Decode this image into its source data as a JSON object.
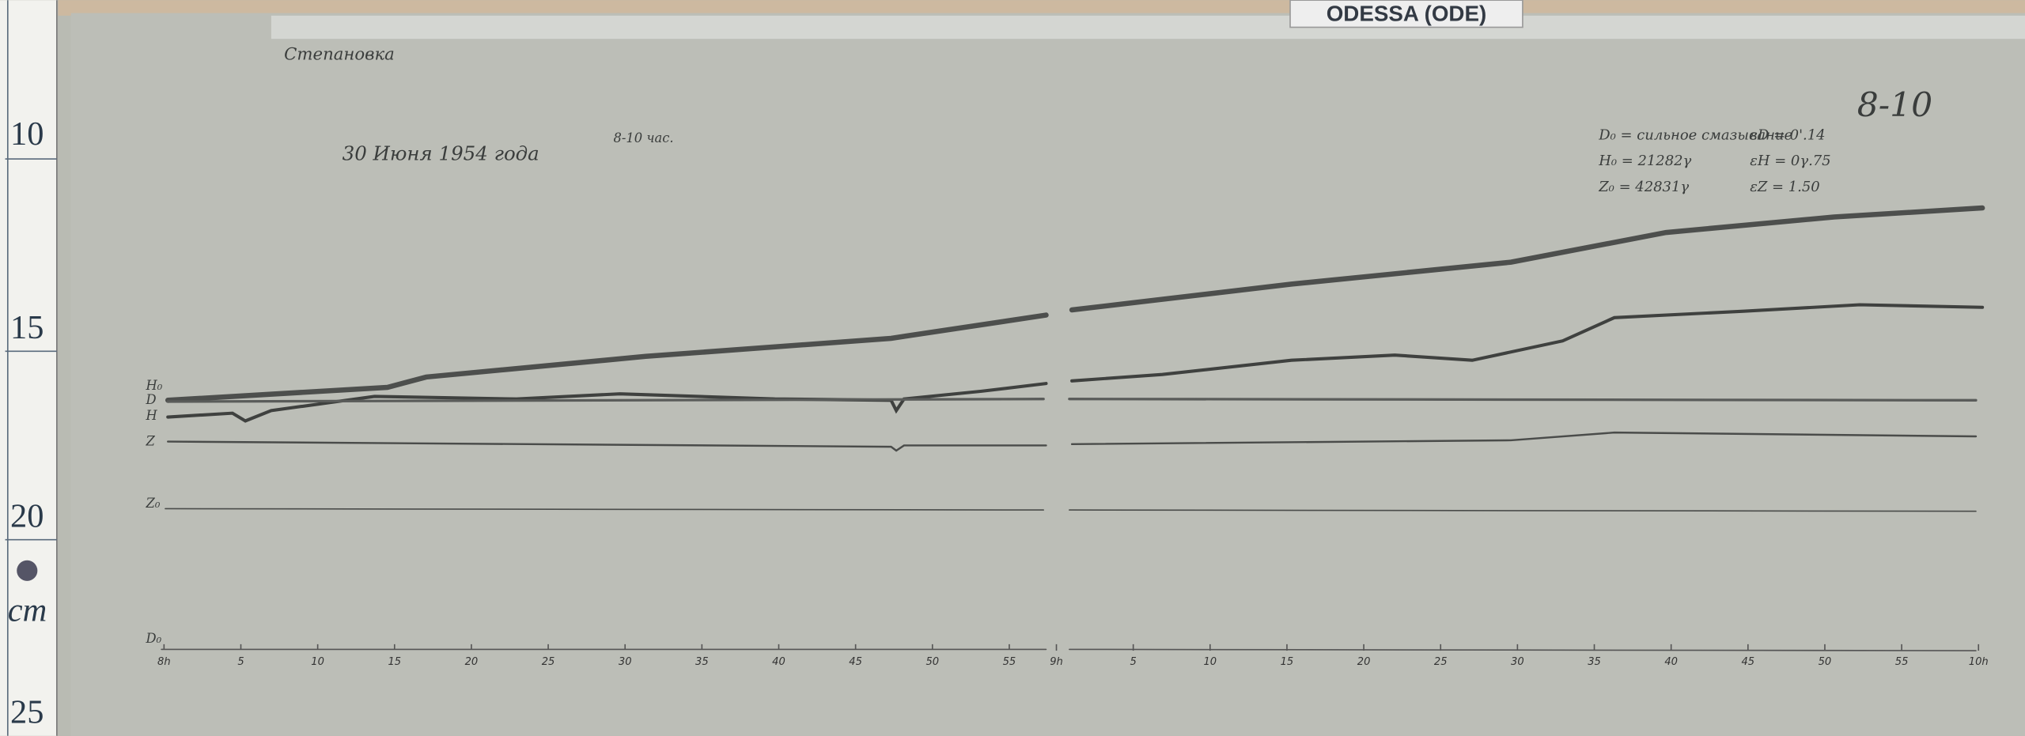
{
  "header": {
    "label": "ODESSA (ODE)"
  },
  "sheet": {
    "station": "Степановка",
    "date": "30 Июня 1954 года",
    "hours": "8-10 час.",
    "corner": "8-10"
  },
  "parameters": [
    {
      "base": "D₀ = сильное смазывание",
      "scale": "εD = 0'.14"
    },
    {
      "base": "H₀ = 21282γ",
      "scale": "εH = 0γ.75"
    },
    {
      "base": "Z₀ = 42831γ",
      "scale": "εZ = 1.50"
    }
  ],
  "trace_labels": [
    "H₀",
    "D",
    "H",
    "Z",
    "Z₀",
    "D₀"
  ],
  "ruler": {
    "marks": [
      "10",
      "15",
      "20",
      "25"
    ],
    "unit": "cm"
  },
  "time_axis": {
    "first": [
      "8h",
      "5",
      "10",
      "15",
      "20",
      "25",
      "30",
      "35",
      "40",
      "45",
      "50",
      "55"
    ],
    "second": [
      "9h",
      "5",
      "10",
      "15",
      "20",
      "25",
      "30",
      "35",
      "40",
      "45",
      "50",
      "55",
      "10h"
    ]
  }
}
